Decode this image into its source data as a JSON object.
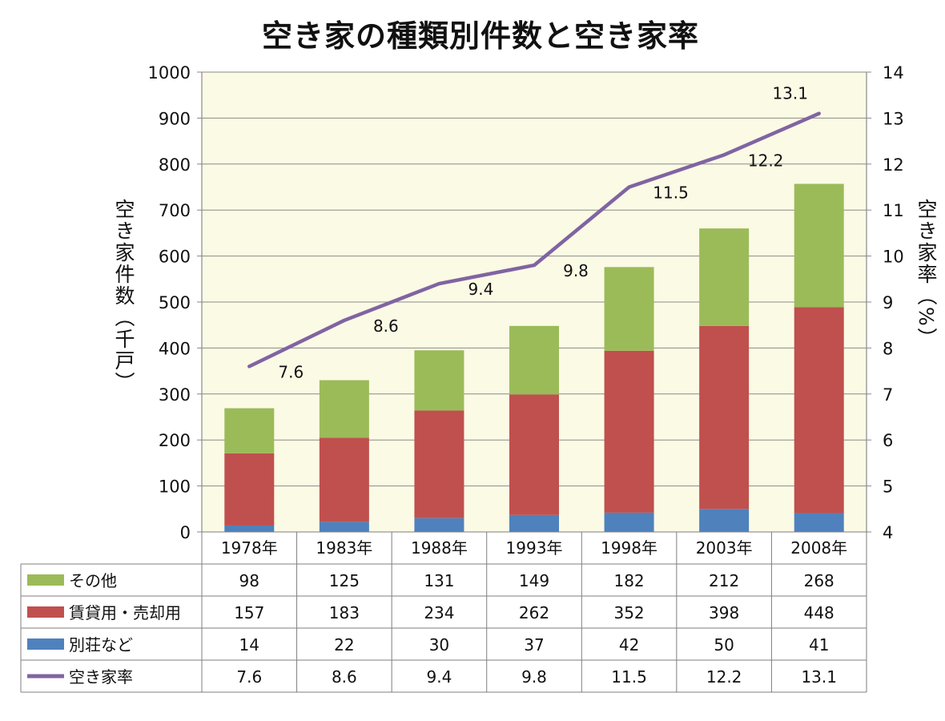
{
  "chart_data": {
    "type": "bar",
    "title": "空き家の種類別件数と空き家率",
    "categories": [
      "1978年",
      "1983年",
      "1988年",
      "1993年",
      "1998年",
      "2003年",
      "2008年"
    ],
    "ylabel": "空き家件数（千戸）",
    "y2label": "空き家率（%）",
    "ylim": [
      0,
      1000
    ],
    "y2lim": [
      4,
      14
    ],
    "yticks": [
      "0",
      "100",
      "200",
      "300",
      "400",
      "500",
      "600",
      "700",
      "800",
      "900",
      "1000"
    ],
    "y2ticks": [
      "4",
      "5",
      "6",
      "7",
      "8",
      "9",
      "10",
      "11",
      "12",
      "13",
      "14"
    ],
    "stacked": true,
    "grid": true,
    "legend_placement": "bottom data table",
    "series": [
      {
        "name": "別荘など",
        "color": "#4f81bd",
        "values": [
          14,
          22,
          30,
          37,
          42,
          50,
          41
        ]
      },
      {
        "name": "賃貸用・売却用",
        "color": "#c0504d",
        "values": [
          157,
          183,
          234,
          262,
          352,
          398,
          448
        ]
      },
      {
        "name": "その他",
        "color": "#9bbb59",
        "values": [
          98,
          125,
          131,
          149,
          182,
          212,
          268
        ]
      }
    ],
    "line": {
      "name": "空き家率",
      "color": "#8064a2",
      "axis": "right",
      "values": [
        7.6,
        8.6,
        9.4,
        9.8,
        11.5,
        12.2,
        13.1
      ],
      "labels": [
        "7.6",
        "8.6",
        "9.4",
        "9.8",
        "11.5",
        "12.2",
        "13.1"
      ]
    },
    "table": {
      "rows": [
        {
          "name": "その他",
          "color": "#9bbb59",
          "marker": "box",
          "cells": [
            "98",
            "125",
            "131",
            "149",
            "182",
            "212",
            "268"
          ]
        },
        {
          "name": "賃貸用・売却用",
          "color": "#c0504d",
          "marker": "box",
          "cells": [
            "157",
            "183",
            "234",
            "262",
            "352",
            "398",
            "448"
          ]
        },
        {
          "name": "別荘など",
          "color": "#4f81bd",
          "marker": "box",
          "cells": [
            "14",
            "22",
            "30",
            "37",
            "42",
            "50",
            "41"
          ]
        },
        {
          "name": "空き家率",
          "color": "#8064a2",
          "marker": "line",
          "cells": [
            "7.6",
            "8.6",
            "9.4",
            "9.8",
            "11.5",
            "12.2",
            "13.1"
          ]
        }
      ]
    },
    "colors": {
      "plot_background": "#fbfae5",
      "grid": "#8a8a8a"
    }
  }
}
